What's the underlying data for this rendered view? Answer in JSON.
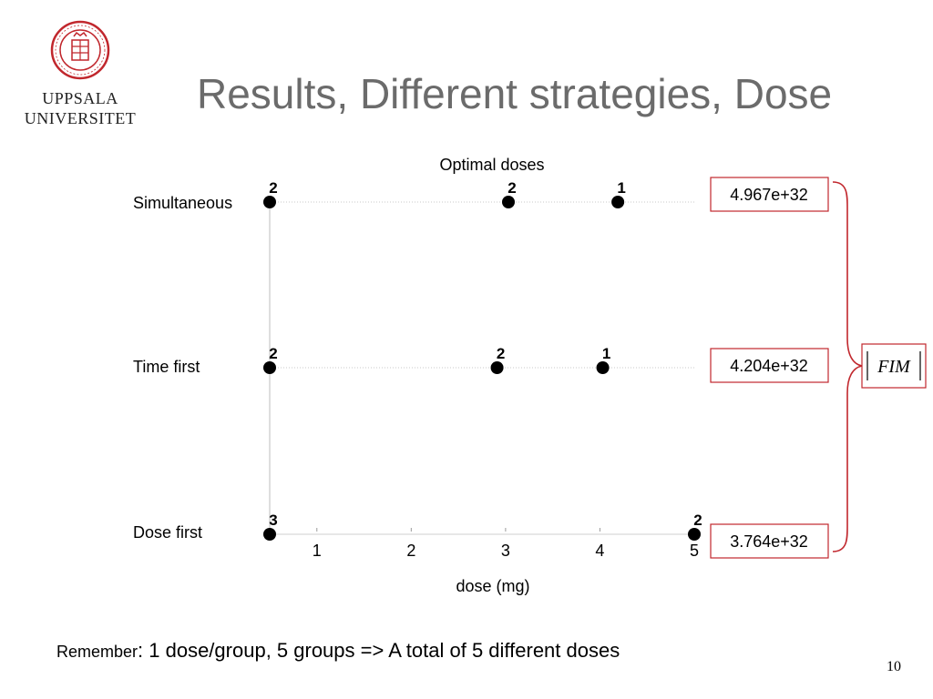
{
  "slide": {
    "title": "Results, Different strategies, Dose",
    "logo": {
      "line1": "UPPSALA",
      "line2": "UNIVERSITET",
      "icon": "university-seal-icon"
    },
    "note_prefix": "Remember",
    "note_text": ": 1 dose/group, 5 groups => A total of 5 different doses",
    "page_number": "10",
    "fim_label": "FIM",
    "accent_color": "#c1272d"
  },
  "chart_data": {
    "type": "scatter",
    "title": "Optimal doses",
    "xlabel": "dose (mg)",
    "ylabel": "",
    "xlim": [
      0,
      4.5
    ],
    "xticks": [
      1,
      2,
      3,
      4,
      5
    ],
    "xtick_labels": [
      "1",
      "2",
      "3",
      "4",
      "5"
    ],
    "xtick_positions": [
      0.5,
      1.5,
      2.5,
      3.5,
      4.5
    ],
    "grid": true,
    "series": [
      {
        "name": "Simultaneous",
        "fim": "4.967e+32",
        "points": [
          {
            "x": 0,
            "count": "2"
          },
          {
            "x": 2.53,
            "count": "2"
          },
          {
            "x": 3.69,
            "count": "1"
          }
        ]
      },
      {
        "name": "Time first",
        "fim": "4.204e+32",
        "points": [
          {
            "x": 0,
            "count": "2"
          },
          {
            "x": 2.41,
            "count": "2"
          },
          {
            "x": 3.53,
            "count": "1"
          }
        ]
      },
      {
        "name": "Dose first",
        "fim": "3.764e+32",
        "points": [
          {
            "x": 0,
            "count": "3"
          },
          {
            "x": 4.5,
            "count": "2"
          }
        ]
      }
    ]
  }
}
